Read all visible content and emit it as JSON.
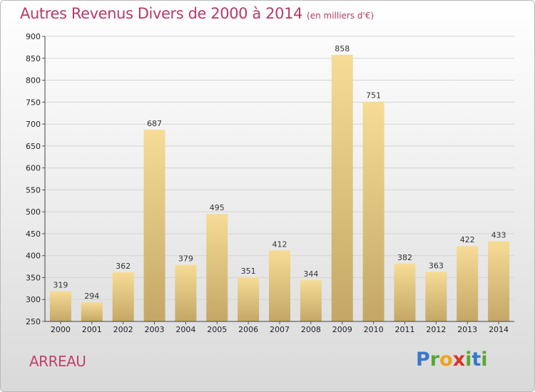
{
  "header": {
    "title": "Autres Revenus Divers de 2000 à 2014",
    "subtitle": "(en milliers d'€)"
  },
  "footer": {
    "place": "ARREAU",
    "logo": {
      "letters": [
        "P",
        "r",
        "o",
        "x",
        "i",
        "t",
        "i"
      ],
      "colors": [
        "#3a78c9",
        "#5aa832",
        "#f0a21e",
        "#d9342b",
        "#5aa832",
        "#3a78c9",
        "#5aa832"
      ]
    }
  },
  "chart_data": {
    "type": "bar",
    "categories": [
      "2000",
      "2001",
      "2002",
      "2003",
      "2004",
      "2005",
      "2006",
      "2007",
      "2008",
      "2009",
      "2010",
      "2011",
      "2012",
      "2013",
      "2014"
    ],
    "values": [
      319,
      294,
      362,
      687,
      379,
      495,
      351,
      412,
      344,
      858,
      751,
      382,
      363,
      422,
      433
    ],
    "data_labels": [
      "319",
      "294",
      "362",
      "687",
      "379",
      "495",
      "351",
      "412",
      "344",
      "858",
      "751",
      "382",
      "363",
      "422",
      "433"
    ],
    "ylim": [
      250,
      900
    ],
    "yticks": [
      "250",
      "300",
      "350",
      "400",
      "450",
      "500",
      "550",
      "600",
      "650",
      "700",
      "750",
      "800",
      "850",
      "900"
    ],
    "grid": true,
    "colors": {
      "bar_light": "#f6dc96",
      "bar_dark": "#c4a766",
      "grid": "#d4d4d4"
    }
  }
}
